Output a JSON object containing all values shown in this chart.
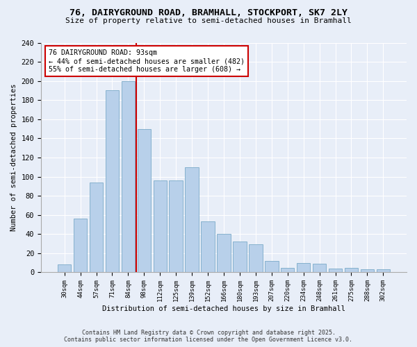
{
  "title_line1": "76, DAIRYGROUND ROAD, BRAMHALL, STOCKPORT, SK7 2LY",
  "title_line2": "Size of property relative to semi-detached houses in Bramhall",
  "xlabel": "Distribution of semi-detached houses by size in Bramhall",
  "ylabel": "Number of semi-detached properties",
  "categories": [
    "30sqm",
    "44sqm",
    "57sqm",
    "71sqm",
    "84sqm",
    "98sqm",
    "112sqm",
    "125sqm",
    "139sqm",
    "152sqm",
    "166sqm",
    "180sqm",
    "193sqm",
    "207sqm",
    "220sqm",
    "234sqm",
    "248sqm",
    "261sqm",
    "275sqm",
    "288sqm",
    "302sqm"
  ],
  "values": [
    8,
    56,
    94,
    190,
    200,
    150,
    96,
    96,
    110,
    53,
    40,
    32,
    29,
    12,
    5,
    10,
    9,
    4,
    5,
    3,
    3
  ],
  "bar_color": "#b8d0ea",
  "bar_edge_color": "#7aaac8",
  "vline_color": "#cc0000",
  "annotation_title": "76 DAIRYGROUND ROAD: 93sqm",
  "annotation_line1": "← 44% of semi-detached houses are smaller (482)",
  "annotation_line2": "55% of semi-detached houses are larger (608) →",
  "annotation_box_color": "#cc0000",
  "footer_line1": "Contains HM Land Registry data © Crown copyright and database right 2025.",
  "footer_line2": "Contains public sector information licensed under the Open Government Licence v3.0.",
  "bg_color": "#e8eef8",
  "ylim": [
    0,
    240
  ],
  "yticks": [
    0,
    20,
    40,
    60,
    80,
    100,
    120,
    140,
    160,
    180,
    200,
    220,
    240
  ]
}
